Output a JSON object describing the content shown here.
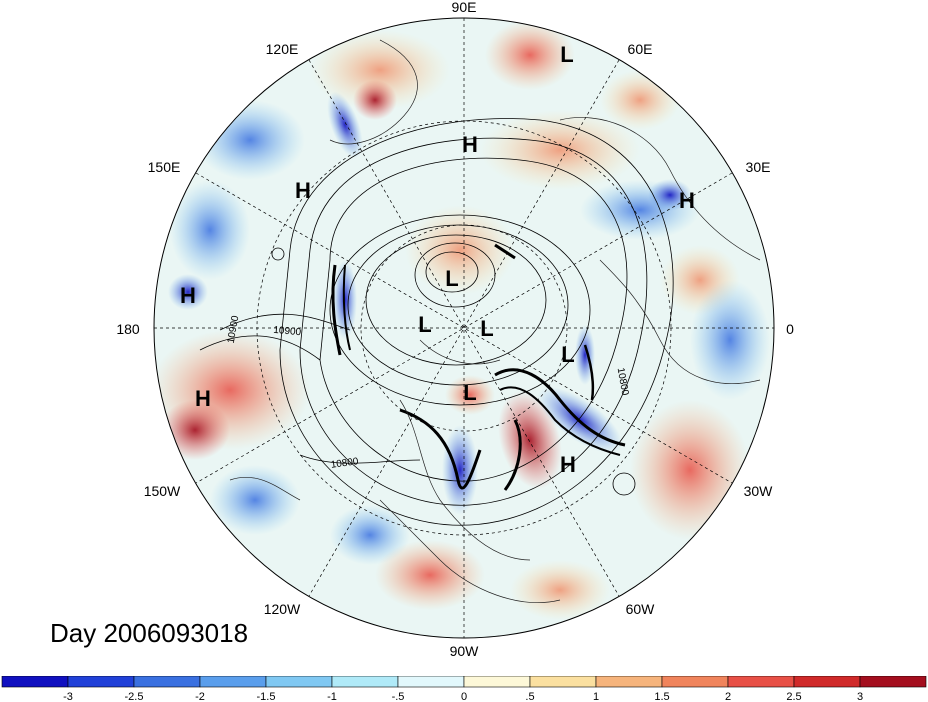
{
  "title": "Day 2006093018",
  "longitude_labels": [
    "90E",
    "60E",
    "30E",
    "0",
    "30W",
    "60W",
    "90W",
    "120W",
    "150W",
    "180",
    "150E",
    "120E"
  ],
  "pressure_systems": [
    "L",
    "H",
    "H",
    "H",
    "H",
    "L",
    "L",
    "L",
    "L",
    "H",
    "H",
    "L"
  ],
  "contour_labels": [
    "10900",
    "10900",
    "10800",
    "10800"
  ],
  "colorbar": {
    "tick_labels": [
      "-3",
      "-2.5",
      "-2",
      "-1.5",
      "-1",
      "-.5",
      "0",
      ".5",
      "1",
      "1.5",
      "2",
      "2.5",
      "3"
    ],
    "colors": [
      "#1010c0",
      "#2040d8",
      "#3a70e0",
      "#5a9eec",
      "#80c8f2",
      "#b0eaf8",
      "#e2f8fc",
      "#fdf8d8",
      "#fbe0a0",
      "#f6b47c",
      "#f0845c",
      "#e85046",
      "#d02a2a",
      "#a40e1e"
    ]
  }
}
